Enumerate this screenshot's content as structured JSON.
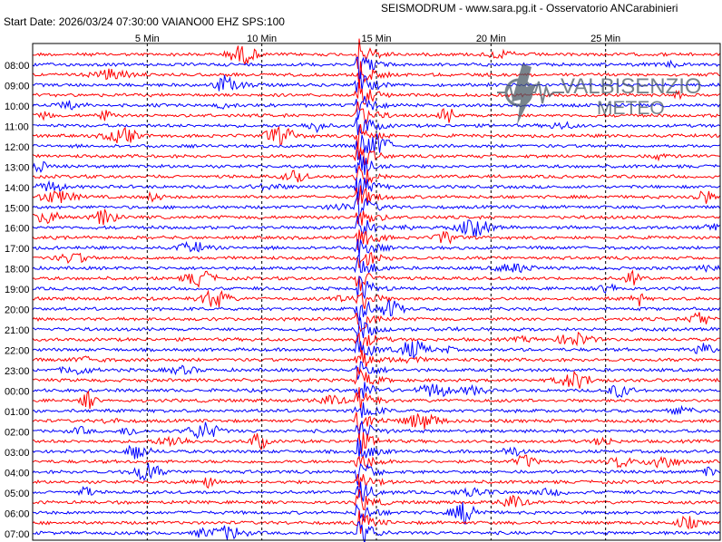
{
  "header": {
    "title": "SEISMODRUM - www.sara.pg.it - Osservatorio ANCarabinieri",
    "start_info": "Start Date: 2026/03/24 07:30:00 VAIANO00 EHZ  SPS:100"
  },
  "logo": {
    "line1": "VALBISENZIO",
    "line2": "METEO"
  },
  "colors": {
    "trace_red": "#ff0000",
    "trace_blue": "#0000ff",
    "grid": "#000000"
  },
  "chart_data": {
    "type": "line",
    "title": "",
    "x_axis_label": "Min",
    "minute_marks": [
      "5 Min",
      "10 Min",
      "15 Min",
      "20 Min",
      "25 Min"
    ],
    "hour_labels": [
      "08:00",
      "09:00",
      "10:00",
      "11:00",
      "12:00",
      "13:00",
      "14:00",
      "15:00",
      "16:00",
      "17:00",
      "18:00",
      "19:00",
      "20:00",
      "21:00",
      "22:00",
      "23:00",
      "00:00",
      "01:00",
      "02:00",
      "03:00",
      "04:00",
      "05:00",
      "06:00",
      "07:00"
    ],
    "lines_per_hour": 2,
    "trace_color_pattern": [
      "red",
      "blue"
    ],
    "major_event": {
      "minute_offset": 14.2,
      "description": "large seismic event spanning all lines"
    }
  }
}
